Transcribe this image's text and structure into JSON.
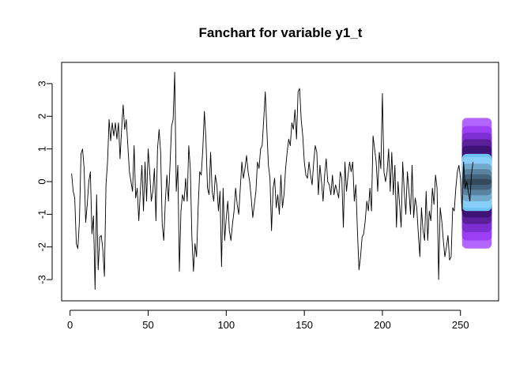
{
  "chart_data": {
    "type": "line",
    "title": "Fanchart for variable y1_t",
    "xlabel": "",
    "ylabel": "",
    "xlim": [
      -5.4,
      274.4
    ],
    "ylim": [
      -3.65,
      3.65
    ],
    "x_ticks": [
      0,
      50,
      100,
      150,
      200,
      250
    ],
    "y_ticks": [
      -3,
      -2,
      -1,
      0,
      1,
      2,
      3
    ],
    "grid": false,
    "legend": "none",
    "series": [
      {
        "color": "#000000",
        "x_start": 1,
        "values": [
          0.25,
          -0.3,
          -0.5,
          -1.9,
          -2.05,
          -1.2,
          0.85,
          1.0,
          0.4,
          -1.25,
          -0.7,
          0.0,
          0.3,
          -1.6,
          -1.05,
          -3.3,
          -0.4,
          -2.7,
          -1.7,
          -1.65,
          -2.1,
          -2.9,
          -0.1,
          0.6,
          1.9,
          1.25,
          1.8,
          1.4,
          1.8,
          1.3,
          1.8,
          0.7,
          1.6,
          2.35,
          1.6,
          1.9,
          1.1,
          0.3,
          0.0,
          -0.3,
          1.1,
          -0.5,
          -0.2,
          -1.2,
          -0.3,
          0.5,
          -0.9,
          0.6,
          -0.6,
          1.0,
          0.3,
          -0.6,
          -0.3,
          0.4,
          -1.2,
          1.0,
          1.6,
          0.9,
          -1.3,
          -1.8,
          -0.6,
          0.2,
          -0.6,
          0.5,
          1.7,
          1.9,
          3.35,
          -0.3,
          0.5,
          -2.75,
          -0.9,
          -0.4,
          -0.6,
          0.1,
          -0.6,
          1.1,
          0.4,
          -1.7,
          -2.75,
          -1.9,
          -2.3,
          -0.8,
          0.3,
          0.2,
          1.0,
          2.15,
          1.3,
          -0.2,
          -0.4,
          0.9,
          -0.3,
          -0.6,
          0.2,
          -0.1,
          -0.9,
          -0.3,
          -2.6,
          -0.2,
          -1.8,
          -1.1,
          -0.6,
          -1.5,
          -1.8,
          -1.3,
          -0.9,
          -0.2,
          -0.7,
          -1.0,
          -0.2,
          0.6,
          0.1,
          0.4,
          0.8,
          0.3,
          0.0,
          -0.5,
          -1.1,
          -0.7,
          -0.3,
          0.6,
          0.4,
          1.0,
          1.1,
          1.9,
          2.75,
          1.6,
          0.5,
          0.1,
          -1.5,
          -0.2,
          0.1,
          -0.8,
          -0.4,
          -1.0,
          0.2,
          -0.8,
          -0.4,
          0.4,
          0.9,
          1.3,
          1.1,
          1.8,
          1.6,
          2.2,
          1.3,
          2.75,
          2.85,
          1.9,
          1.4,
          0.6,
          0.2,
          0.1,
          0.6,
          0.2,
          -0.1,
          0.6,
          1.1,
          0.9,
          -0.4,
          0.5,
          0.0,
          -0.6,
          0.2,
          0.7,
          0.0,
          -0.1,
          -0.4,
          0.2,
          -0.4,
          -0.1,
          -0.3,
          -0.5,
          0.3,
          0.1,
          -1.4,
          0.6,
          -0.3,
          0.2,
          0.6,
          0.3,
          0.6,
          -0.6,
          -0.1,
          -1.5,
          -2.7,
          -2.3,
          -1.7,
          -1.6,
          -1.2,
          -0.6,
          -0.9,
          -0.2,
          -0.9,
          1.4,
          1.0,
          0.6,
          -0.3,
          0.9,
          0.4,
          2.7,
          0.3,
          0.0,
          0.3,
          1.0,
          -0.3,
          0.9,
          -0.4,
          0.5,
          -1.4,
          0.0,
          -0.7,
          -1.4,
          0.6,
          -0.3,
          -1.0,
          0.3,
          -0.3,
          -1.0,
          0.5,
          -1.1,
          -0.5,
          -0.8,
          -1.6,
          -2.3,
          -0.8,
          -1.5,
          -1.8,
          -0.3,
          -1.8,
          -0.9,
          -1.2,
          -0.2,
          -0.7,
          0.2,
          -0.2,
          -3.0,
          -0.8,
          -1.2,
          -1.8,
          -2.3,
          -2.0,
          -1.65,
          -2.4,
          -2.3,
          -0.8,
          -0.9,
          -0.2,
          0.3,
          0.5,
          0.1,
          -0.9,
          0.6,
          -0.2,
          0.0,
          -0.3,
          -0.6,
          0.2,
          0.6
        ]
      }
    ],
    "fan": {
      "x_start": 251,
      "x_end": 270,
      "bands": [
        {
          "level": 0.99,
          "color": "#b266ff"
        },
        {
          "level": 0.95,
          "color": "#9b3ff5"
        },
        {
          "level": 0.9,
          "color": "#7e2fd4"
        },
        {
          "level": 0.8,
          "color": "#5b1f9a"
        },
        {
          "level": 0.7,
          "color": "#3d1475"
        },
        {
          "level": 0.6,
          "color": "#6fc3f3"
        },
        {
          "level": 0.5,
          "color": "#87cefa"
        },
        {
          "level": 0.4,
          "color": "#73a9cb"
        },
        {
          "level": 0.3,
          "color": "#5a83a0"
        },
        {
          "level": 0.2,
          "color": "#44637c"
        },
        {
          "level": 0.1,
          "color": "#34495c"
        }
      ],
      "upper": [
        1.95,
        1.7,
        1.5,
        1.3,
        1.1,
        0.85,
        0.75,
        0.55,
        0.38,
        0.22,
        0.08
      ],
      "lower": [
        -2.05,
        -1.8,
        -1.55,
        -1.3,
        -1.1,
        -0.9,
        -0.8,
        -0.6,
        -0.42,
        -0.25,
        -0.1
      ]
    }
  }
}
